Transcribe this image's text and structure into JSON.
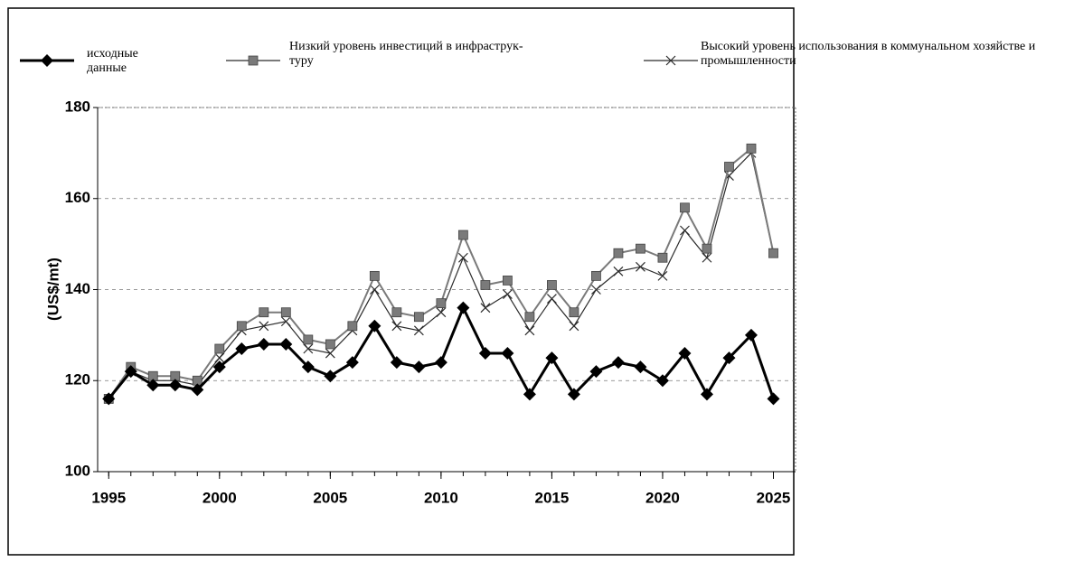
{
  "chart_data": {
    "type": "line",
    "y_label": "(US$/mt)",
    "x": [
      1995,
      1996,
      1997,
      1998,
      1999,
      2000,
      2001,
      2002,
      2003,
      2004,
      2005,
      2006,
      2007,
      2008,
      2009,
      2010,
      2011,
      2012,
      2013,
      2014,
      2015,
      2016,
      2017,
      2018,
      2019,
      2020,
      2021,
      2022,
      2023,
      2024,
      2025
    ],
    "series": [
      {
        "name": "исходные данные",
        "color": "#000000",
        "marker": "diamond",
        "values": [
          116,
          122,
          119,
          119,
          118,
          123,
          127,
          128,
          128,
          123,
          121,
          124,
          132,
          124,
          123,
          124,
          136,
          126,
          126,
          117,
          125,
          117,
          122,
          124,
          123,
          120,
          126,
          117,
          125,
          130,
          116
        ]
      },
      {
        "name": "Низкий уровень инвестиций в инфраструк-туру",
        "color": "#7a7a7a",
        "marker": "square",
        "values": [
          116,
          123,
          121,
          121,
          120,
          127,
          132,
          135,
          135,
          129,
          128,
          132,
          143,
          135,
          134,
          137,
          152,
          141,
          142,
          134,
          141,
          135,
          143,
          148,
          149,
          147,
          158,
          149,
          167,
          171,
          148
        ]
      },
      {
        "name": "Высокий уровень использования в коммунальном хозяйстве и промышленности",
        "color": "#2a2a2a",
        "marker": "x",
        "values": [
          116,
          122,
          120,
          120,
          119,
          125,
          131,
          132,
          133,
          127,
          126,
          131,
          140,
          132,
          131,
          135,
          147,
          136,
          139,
          131,
          138,
          132,
          140,
          144,
          145,
          143,
          153,
          147,
          165,
          170,
          148
        ]
      }
    ],
    "xlim": [
      1994.5,
      2026
    ],
    "xticks": [
      1995,
      2000,
      2005,
      2010,
      2015,
      2020,
      2025
    ],
    "ylim": [
      100,
      180
    ],
    "yticks": [
      100,
      120,
      140,
      160,
      180
    ],
    "grid": true
  }
}
